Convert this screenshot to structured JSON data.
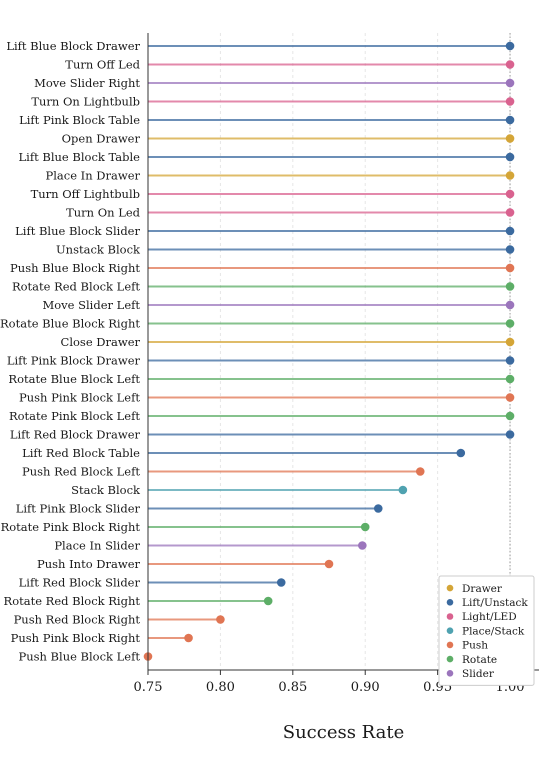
{
  "chart_data": {
    "type": "lollipop",
    "xlabel": "Success Rate",
    "xlim": [
      0.75,
      1.02
    ],
    "xticks": [
      0.75,
      0.8,
      0.85,
      0.9,
      0.95,
      1.0
    ],
    "xtick_labels": [
      "0.75",
      "0.80",
      "0.85",
      "0.90",
      "0.95",
      "1.00"
    ],
    "grid": "vertical dashed",
    "reference_line": 1.0,
    "legend_position": "bottom-right",
    "groups": [
      {
        "name": "Drawer",
        "color": "#D4A537"
      },
      {
        "name": "Lift/Unstack",
        "color": "#3B6A9F"
      },
      {
        "name": "Light/LED",
        "color": "#D9628F"
      },
      {
        "name": "Place/Stack",
        "color": "#4FA2B0"
      },
      {
        "name": "Push",
        "color": "#E07553"
      },
      {
        "name": "Rotate",
        "color": "#5DAE67"
      },
      {
        "name": "Slider",
        "color": "#9B75BC"
      }
    ],
    "points": [
      {
        "label": "Lift Blue Block Drawer",
        "value": 1.0,
        "group": "Lift/Unstack"
      },
      {
        "label": "Turn Off Led",
        "value": 1.0,
        "group": "Light/LED"
      },
      {
        "label": "Move Slider Right",
        "value": 1.0,
        "group": "Slider"
      },
      {
        "label": "Turn On Lightbulb",
        "value": 1.0,
        "group": "Light/LED"
      },
      {
        "label": "Lift Pink Block Table",
        "value": 1.0,
        "group": "Lift/Unstack"
      },
      {
        "label": "Open Drawer",
        "value": 1.0,
        "group": "Drawer"
      },
      {
        "label": "Lift Blue Block Table",
        "value": 1.0,
        "group": "Lift/Unstack"
      },
      {
        "label": "Place In Drawer",
        "value": 1.0,
        "group": "Drawer"
      },
      {
        "label": "Turn Off Lightbulb",
        "value": 1.0,
        "group": "Light/LED"
      },
      {
        "label": "Turn On Led",
        "value": 1.0,
        "group": "Light/LED"
      },
      {
        "label": "Lift Blue Block Slider",
        "value": 1.0,
        "group": "Lift/Unstack"
      },
      {
        "label": "Unstack Block",
        "value": 1.0,
        "group": "Lift/Unstack"
      },
      {
        "label": "Push Blue Block Right",
        "value": 1.0,
        "group": "Push"
      },
      {
        "label": "Rotate Red Block Left",
        "value": 1.0,
        "group": "Rotate"
      },
      {
        "label": "Move Slider Left",
        "value": 1.0,
        "group": "Slider"
      },
      {
        "label": "Rotate Blue Block Right",
        "value": 1.0,
        "group": "Rotate"
      },
      {
        "label": "Close Drawer",
        "value": 1.0,
        "group": "Drawer"
      },
      {
        "label": "Lift Pink Block Drawer",
        "value": 1.0,
        "group": "Lift/Unstack"
      },
      {
        "label": "Rotate Blue Block Left",
        "value": 1.0,
        "group": "Rotate"
      },
      {
        "label": "Push Pink Block Left",
        "value": 1.0,
        "group": "Push"
      },
      {
        "label": "Rotate Pink Block Left",
        "value": 1.0,
        "group": "Rotate"
      },
      {
        "label": "Lift Red Block Drawer",
        "value": 1.0,
        "group": "Lift/Unstack"
      },
      {
        "label": "Lift Red Block Table",
        "value": 0.966,
        "group": "Lift/Unstack"
      },
      {
        "label": "Push Red Block Left",
        "value": 0.938,
        "group": "Push"
      },
      {
        "label": "Stack Block",
        "value": 0.926,
        "group": "Place/Stack"
      },
      {
        "label": "Lift Pink Block Slider",
        "value": 0.909,
        "group": "Lift/Unstack"
      },
      {
        "label": "Rotate Pink Block Right",
        "value": 0.9,
        "group": "Rotate"
      },
      {
        "label": "Place In Slider",
        "value": 0.898,
        "group": "Slider"
      },
      {
        "label": "Push Into Drawer",
        "value": 0.875,
        "group": "Push"
      },
      {
        "label": "Lift Red Block Slider",
        "value": 0.842,
        "group": "Lift/Unstack"
      },
      {
        "label": "Rotate Red Block Right",
        "value": 0.833,
        "group": "Rotate"
      },
      {
        "label": "Push Red Block Right",
        "value": 0.8,
        "group": "Push"
      },
      {
        "label": "Push Pink Block Right",
        "value": 0.778,
        "group": "Push"
      },
      {
        "label": "Push Blue Block Left",
        "value": 0.75,
        "group": "Push"
      }
    ]
  }
}
